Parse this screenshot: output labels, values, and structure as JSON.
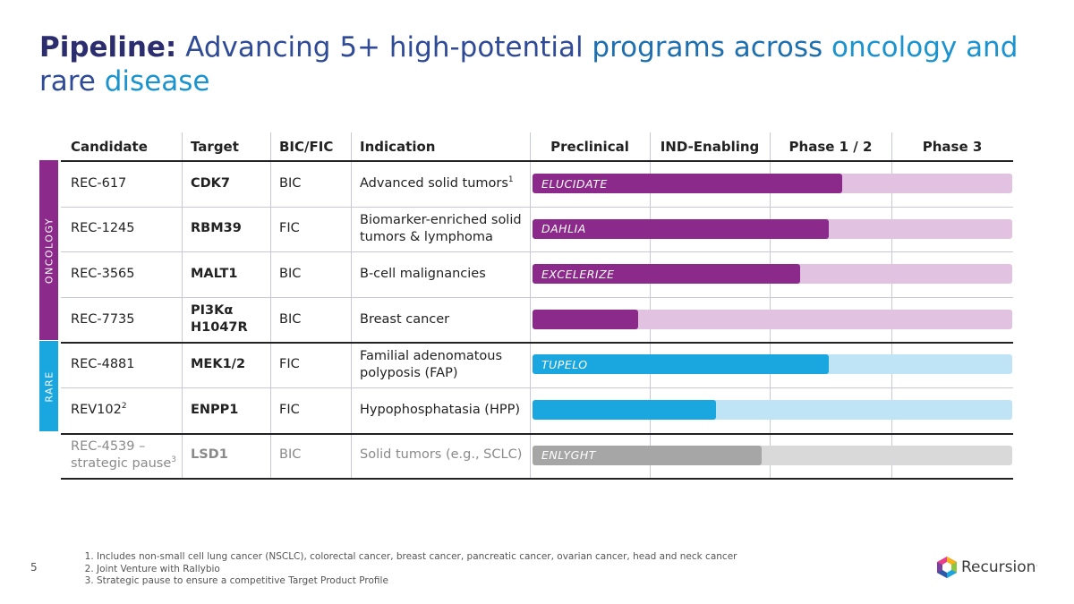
{
  "title": {
    "bold": "Pipeline:",
    "w1": "Advancing 5+ high-potential",
    "w2": "programs across",
    "w3": "oncology and",
    "w4": "rare",
    "w5": "disease"
  },
  "columns": {
    "candidate": "Candidate",
    "target": "Target",
    "bicfic": "BIC/FIC",
    "indication": "Indication",
    "preclinical": "Preclinical",
    "ind": "IND-Enabling",
    "phase12": "Phase 1 / 2",
    "phase3": "Phase 3"
  },
  "groups": {
    "oncology": "ONCOLOGY",
    "rare": "RARE"
  },
  "colors": {
    "oncology_fill": "#8b2a8a",
    "oncology_track": "#e1c2e0",
    "rare_fill": "#1aa7e0",
    "rare_track": "#bfe4f5",
    "paused_fill": "#a6a6a6",
    "paused_track": "#d9d9d9"
  },
  "rows": [
    {
      "candidate": "REC-617",
      "target": "CDK7",
      "bicfic": "BIC",
      "indication": "Advanced solid tumors",
      "ind_sup": "1",
      "trial": "ELUCIDATE",
      "progress": 0.645,
      "group": "oncology"
    },
    {
      "candidate": "REC-1245",
      "target": "RBM39",
      "bicfic": "FIC",
      "indication": "Biomarker-enriched solid tumors & lymphoma",
      "trial": "DAHLIA",
      "progress": 0.617,
      "group": "oncology"
    },
    {
      "candidate": "REC-3565",
      "target": "MALT1",
      "bicfic": "BIC",
      "indication": "B-cell malignancies",
      "trial": "EXCELERIZE",
      "progress": 0.557,
      "group": "oncology"
    },
    {
      "candidate": "REC-7735",
      "target": "PI3Kα H1047R",
      "bicfic": "BIC",
      "indication": "Breast cancer",
      "trial": "",
      "progress": 0.22,
      "group": "oncology"
    },
    {
      "candidate": "REC-4881",
      "target": "MEK1/2",
      "bicfic": "FIC",
      "indication": "Familial adenomatous polyposis (FAP)",
      "trial": "TUPELO",
      "progress": 0.617,
      "group": "rare"
    },
    {
      "candidate": "REV102",
      "cand_sup": "2",
      "target": "ENPP1",
      "bicfic": "FIC",
      "indication": "Hypophosphatasia (HPP)",
      "trial": "",
      "progress": 0.383,
      "group": "rare"
    },
    {
      "candidate": "REC-4539 – strategic pause",
      "cand_sup": "3",
      "target": "LSD1",
      "bicfic": "BIC",
      "indication": "Solid tumors (e.g., SCLC)",
      "trial": "ENLYGHT",
      "progress": 0.477,
      "group": "paused"
    }
  ],
  "footnotes": [
    "Includes non-small cell lung cancer (NSCLC), colorectal cancer, breast cancer, pancreatic cancer, ovarian cancer, head and neck cancer",
    "Joint Venture with Rallybio",
    "Strategic pause to ensure a competitive Target Product Profile"
  ],
  "page_number": "5",
  "logo": {
    "name": "Recursion",
    "mark": "."
  }
}
